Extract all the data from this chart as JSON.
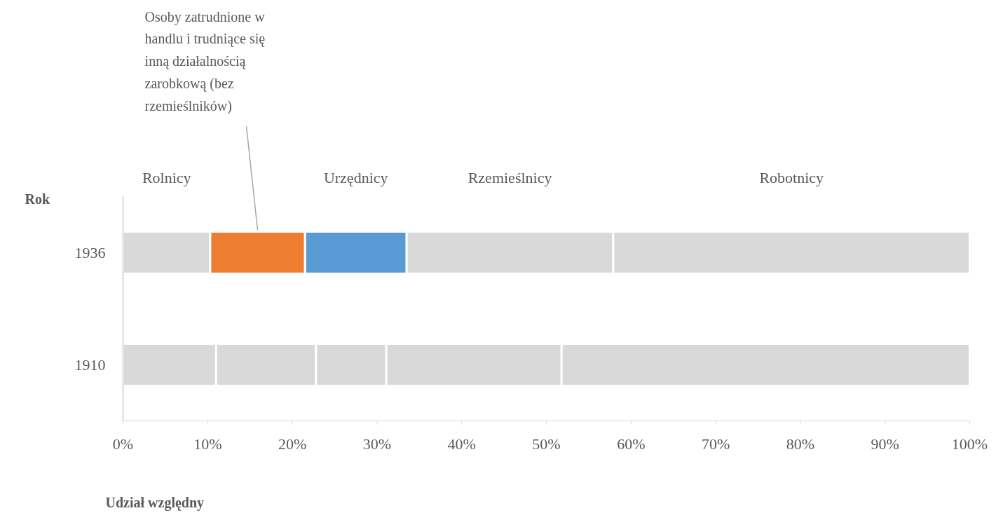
{
  "chart_data": {
    "type": "bar",
    "orientation": "horizontal",
    "stacked": true,
    "xlabel": "Udział względny",
    "ylabel": "Rok",
    "categories": [
      "1936",
      "1910"
    ],
    "series": [
      {
        "name": "Rolnicy",
        "colors": [
          "#d9d9d9",
          "#d9d9d9"
        ],
        "values": [
          10.3,
          11.0
        ]
      },
      {
        "name": "Osoby zatrudnione w handlu i trudniące się inną działalnością zarobkową (bez rzemieślników)",
        "colors": [
          "#ed7d31",
          "#d9d9d9"
        ],
        "values": [
          11.2,
          11.8
        ]
      },
      {
        "name": "Urzędnicy",
        "colors": [
          "#5b9bd5",
          "#d9d9d9"
        ],
        "values": [
          12.0,
          8.3
        ]
      },
      {
        "name": "Rzemieślnicy",
        "colors": [
          "#d9d9d9",
          "#d9d9d9"
        ],
        "values": [
          24.4,
          20.7
        ]
      },
      {
        "name": "Robotnicy",
        "colors": [
          "#d9d9d9",
          "#d9d9d9"
        ],
        "values": [
          42.1,
          48.2
        ]
      }
    ],
    "xlim": [
      0,
      100
    ],
    "xticks": [
      {
        "value": 0,
        "label": "0%"
      },
      {
        "value": 10,
        "label": "10%"
      },
      {
        "value": 20,
        "label": "20%"
      },
      {
        "value": 30,
        "label": "30%"
      },
      {
        "value": 40,
        "label": "40%"
      },
      {
        "value": 50,
        "label": "50%"
      },
      {
        "value": 60,
        "label": "60%"
      },
      {
        "value": 70,
        "label": "70%"
      },
      {
        "value": 80,
        "label": "80%"
      },
      {
        "value": 90,
        "label": "90%"
      },
      {
        "value": 100,
        "label": "100%"
      }
    ],
    "grid": false
  }
}
